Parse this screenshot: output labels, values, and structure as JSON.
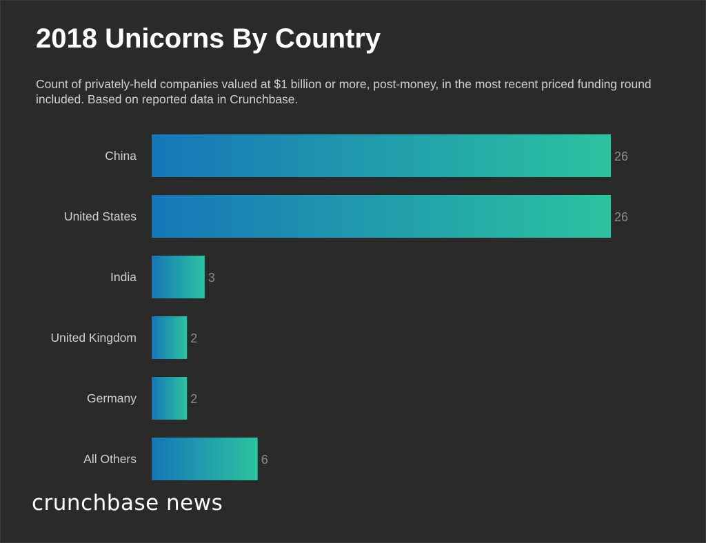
{
  "chart_data": {
    "type": "bar",
    "orientation": "horizontal",
    "title": "2018 Unicorns By Country",
    "subtitle": "Count of privately-held companies valued at $1 billion or more, post-money, in the most recent priced funding round included. Based on reported data in Crunchbase.",
    "categories": [
      "China",
      "United States",
      "India",
      "United Kingdom",
      "Germany",
      "All Others"
    ],
    "values": [
      26,
      26,
      3,
      2,
      2,
      6
    ],
    "xlim": [
      0,
      26
    ],
    "grid": false,
    "colors": {
      "gradient_start": "#1676b8",
      "gradient_end": "#2cc3a0",
      "background": "#2a2a2a",
      "value_label": "#8a8a8a",
      "category_label": "#d0d0d0"
    }
  },
  "branding": {
    "logo": "crunchbase news"
  }
}
